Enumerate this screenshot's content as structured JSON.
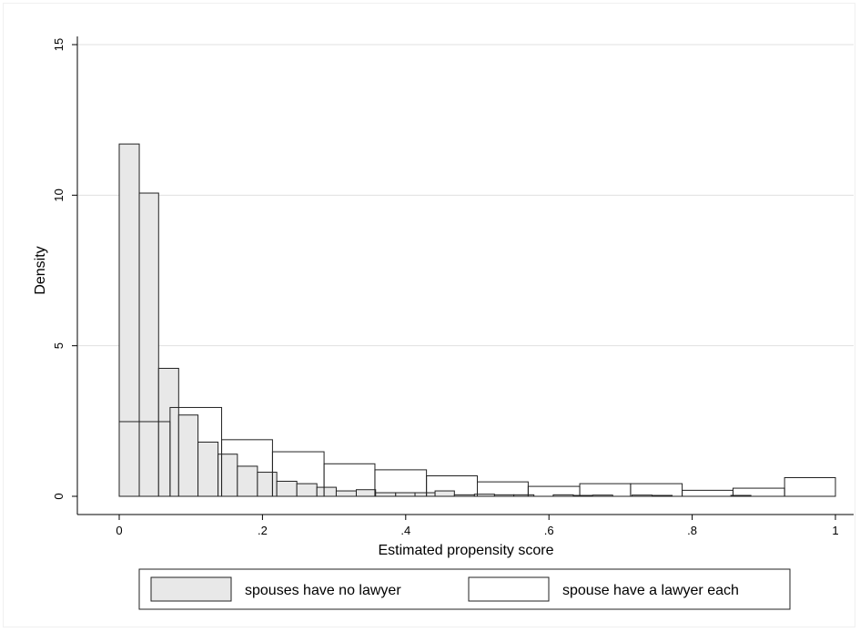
{
  "chart_data": {
    "type": "bar",
    "xlabel": "Estimated propensity score",
    "ylabel": "Density",
    "xlim": [
      -0.07,
      1.02
    ],
    "ylim": [
      -0.6,
      15.3
    ],
    "x_ticks": [
      0,
      0.2,
      0.4,
      0.6,
      0.8,
      1
    ],
    "x_tick_labels": [
      "0",
      ".2",
      ".4",
      ".6",
      ".8",
      "1"
    ],
    "y_ticks": [
      0,
      5,
      10,
      15
    ],
    "y_tick_labels": [
      "0",
      "5",
      "10",
      "15"
    ],
    "grid": true,
    "legend_position": "bottom",
    "series": [
      {
        "name": "spouses have no lawyer",
        "fill": "#e8e8e8",
        "bins": [
          {
            "start": 0.0,
            "end": 0.028,
            "value": 11.7
          },
          {
            "start": 0.028,
            "end": 0.055,
            "value": 10.07
          },
          {
            "start": 0.055,
            "end": 0.083,
            "value": 4.25
          },
          {
            "start": 0.083,
            "end": 0.11,
            "value": 2.7
          },
          {
            "start": 0.11,
            "end": 0.138,
            "value": 1.8
          },
          {
            "start": 0.138,
            "end": 0.165,
            "value": 1.4
          },
          {
            "start": 0.165,
            "end": 0.193,
            "value": 1.0
          },
          {
            "start": 0.193,
            "end": 0.22,
            "value": 0.8
          },
          {
            "start": 0.22,
            "end": 0.248,
            "value": 0.5
          },
          {
            "start": 0.248,
            "end": 0.276,
            "value": 0.42
          },
          {
            "start": 0.276,
            "end": 0.303,
            "value": 0.3
          },
          {
            "start": 0.303,
            "end": 0.331,
            "value": 0.18
          },
          {
            "start": 0.331,
            "end": 0.358,
            "value": 0.22
          },
          {
            "start": 0.358,
            "end": 0.386,
            "value": 0.12
          },
          {
            "start": 0.386,
            "end": 0.413,
            "value": 0.12
          },
          {
            "start": 0.413,
            "end": 0.441,
            "value": 0.12
          },
          {
            "start": 0.441,
            "end": 0.468,
            "value": 0.18
          },
          {
            "start": 0.468,
            "end": 0.496,
            "value": 0.05
          },
          {
            "start": 0.496,
            "end": 0.524,
            "value": 0.07
          },
          {
            "start": 0.524,
            "end": 0.551,
            "value": 0.05
          },
          {
            "start": 0.551,
            "end": 0.579,
            "value": 0.05
          },
          {
            "start": 0.579,
            "end": 0.606,
            "value": 0.0
          },
          {
            "start": 0.606,
            "end": 0.634,
            "value": 0.05
          },
          {
            "start": 0.634,
            "end": 0.661,
            "value": 0.03
          },
          {
            "start": 0.661,
            "end": 0.689,
            "value": 0.04
          },
          {
            "start": 0.689,
            "end": 0.716,
            "value": 0.0
          },
          {
            "start": 0.716,
            "end": 0.744,
            "value": 0.04
          },
          {
            "start": 0.744,
            "end": 0.772,
            "value": 0.03
          },
          {
            "start": 0.772,
            "end": 0.799,
            "value": 0.0
          },
          {
            "start": 0.799,
            "end": 0.827,
            "value": 0.0
          },
          {
            "start": 0.827,
            "end": 0.854,
            "value": 0.0
          },
          {
            "start": 0.854,
            "end": 0.882,
            "value": 0.03
          }
        ]
      },
      {
        "name": "spouse have a lawyer each",
        "fill": "none",
        "bins": [
          {
            "start": 0.0,
            "end": 0.071,
            "value": 2.48
          },
          {
            "start": 0.071,
            "end": 0.143,
            "value": 2.95
          },
          {
            "start": 0.143,
            "end": 0.214,
            "value": 1.88
          },
          {
            "start": 0.214,
            "end": 0.286,
            "value": 1.48
          },
          {
            "start": 0.286,
            "end": 0.357,
            "value": 1.08
          },
          {
            "start": 0.357,
            "end": 0.429,
            "value": 0.88
          },
          {
            "start": 0.429,
            "end": 0.5,
            "value": 0.68
          },
          {
            "start": 0.5,
            "end": 0.571,
            "value": 0.48
          },
          {
            "start": 0.571,
            "end": 0.643,
            "value": 0.33
          },
          {
            "start": 0.643,
            "end": 0.714,
            "value": 0.42
          },
          {
            "start": 0.714,
            "end": 0.786,
            "value": 0.42
          },
          {
            "start": 0.786,
            "end": 0.857,
            "value": 0.2
          },
          {
            "start": 0.857,
            "end": 0.929,
            "value": 0.27
          },
          {
            "start": 0.929,
            "end": 1.0,
            "value": 0.62
          }
        ]
      }
    ]
  }
}
